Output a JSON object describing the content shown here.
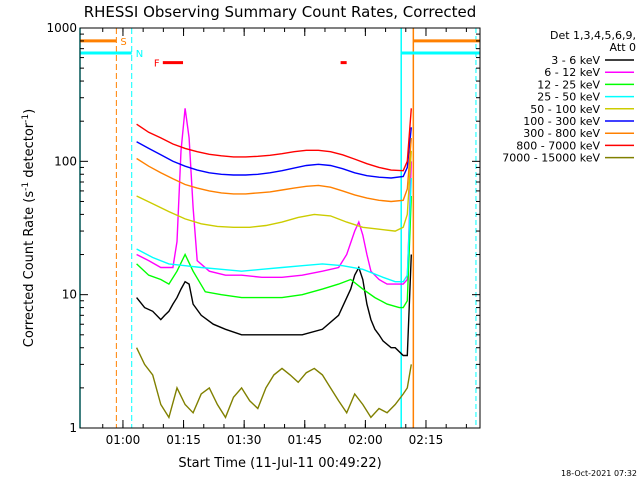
{
  "chart_data": {
    "type": "line",
    "title": "RHESSI Observing Summary Count Rates, Corrected",
    "xlabel": "Start Time (11-Jul-11 00:49:22)",
    "ylabel_main": "Corrected Count Rate (s",
    "ylabel_sup1": "-1",
    "ylabel_mid": " detector",
    "ylabel_sup2": "-1",
    "ylabel_end": ")",
    "x_unit": "minutes since 00:49:22",
    "xlim": [
      0,
      99
    ],
    "ylim": [
      1,
      1000
    ],
    "yscale": "log",
    "x_ticks": [
      {
        "label": "01:00",
        "t": 10.63
      },
      {
        "label": "01:15",
        "t": 25.63
      },
      {
        "label": "01:30",
        "t": 40.63
      },
      {
        "label": "01:45",
        "t": 55.63
      },
      {
        "label": "02:00",
        "t": 70.63
      },
      {
        "label": "02:15",
        "t": 85.63
      }
    ],
    "y_ticks": [
      {
        "label": "1",
        "v": 1
      },
      {
        "label": "10",
        "v": 10
      },
      {
        "label": "100",
        "v": 100
      },
      {
        "label": "1000",
        "v": 1000
      }
    ],
    "legend_header": [
      "Det 1,3,4,5,6,9,",
      "Att 0"
    ],
    "legend_position": "right",
    "series": [
      {
        "name": "3 - 6 keV",
        "color": "#000000",
        "x": [
          14,
          16,
          18,
          20,
          21,
          22,
          23,
          24,
          25,
          26,
          27,
          28,
          30,
          33,
          36,
          40,
          45,
          50,
          55,
          60,
          64,
          67,
          68,
          69,
          70,
          71,
          72,
          73,
          74,
          75,
          77,
          78,
          80,
          81,
          82
        ],
        "y": [
          9.5,
          8.0,
          7.5,
          6.5,
          7.0,
          7.5,
          8.5,
          9.5,
          11.0,
          12.5,
          12.0,
          8.5,
          7.0,
          6.0,
          5.5,
          5.0,
          5.0,
          5.0,
          5.0,
          5.5,
          7.0,
          11.0,
          14.0,
          16.0,
          13.0,
          8.5,
          6.5,
          5.5,
          5.0,
          4.5,
          4.0,
          4.0,
          3.5,
          3.5,
          20
        ]
      },
      {
        "name": "6 - 12 keV",
        "color": "#ff00ff",
        "x": [
          14,
          17,
          20,
          23,
          24,
          25,
          26,
          27,
          28,
          29,
          32,
          36,
          40,
          45,
          50,
          55,
          60,
          64,
          66,
          68,
          69,
          70,
          71,
          72,
          74,
          76,
          78,
          80,
          81,
          82
        ],
        "y": [
          20,
          18,
          16,
          16,
          25,
          120,
          250,
          150,
          45,
          18,
          15,
          14,
          14,
          13.5,
          13.5,
          14,
          15,
          16,
          20,
          30,
          35,
          28,
          20,
          15,
          13,
          12,
          12,
          12,
          13,
          100
        ]
      },
      {
        "name": "12 - 25 keV",
        "color": "#00ff00",
        "x": [
          14,
          17,
          20,
          22,
          24,
          26,
          28,
          31,
          35,
          40,
          45,
          50,
          55,
          60,
          64,
          67,
          70,
          73,
          76,
          79,
          80,
          81,
          82
        ],
        "y": [
          17,
          14,
          13,
          12,
          15,
          20,
          15,
          10.5,
          10,
          9.5,
          9.5,
          9.5,
          10,
          11,
          12,
          13,
          11,
          9.5,
          8.5,
          8,
          8,
          9,
          55
        ]
      },
      {
        "name": "25 - 50 keV",
        "color": "#00ffff",
        "x": [
          14,
          18,
          22,
          26,
          30,
          35,
          40,
          45,
          50,
          55,
          60,
          65,
          70,
          75,
          78,
          80,
          81,
          82
        ],
        "y": [
          22,
          19,
          17,
          16.5,
          16,
          15.5,
          15,
          15.5,
          16,
          16.5,
          17,
          16.5,
          15.5,
          13.5,
          12.5,
          12.5,
          14,
          75
        ]
      },
      {
        "name": "50 - 100 keV",
        "color": "#cccc00",
        "x": [
          14,
          18,
          22,
          26,
          30,
          34,
          38,
          42,
          46,
          50,
          54,
          58,
          62,
          66,
          70,
          74,
          78,
          80,
          81,
          82
        ],
        "y": [
          55,
          48,
          42,
          37,
          34,
          32.5,
          32,
          32,
          33,
          35,
          38,
          40,
          39,
          35,
          32,
          31,
          30,
          32,
          40,
          120
        ]
      },
      {
        "name": "100 - 300 keV",
        "color": "#0000ff",
        "x": [
          14,
          17,
          20,
          23,
          26,
          29,
          32,
          35,
          38,
          41,
          44,
          47,
          50,
          53,
          56,
          59,
          62,
          65,
          68,
          71,
          74,
          77,
          80,
          81,
          82
        ],
        "y": [
          140,
          125,
          112,
          100,
          92,
          86,
          82,
          80,
          79,
          79,
          80,
          82,
          85,
          89,
          93,
          95,
          93,
          88,
          82,
          78,
          76,
          75,
          77,
          90,
          180
        ]
      },
      {
        "name": "300 - 800 keV",
        "color": "#ff8000",
        "x": [
          14,
          17,
          20,
          23,
          26,
          29,
          32,
          35,
          38,
          41,
          44,
          47,
          50,
          53,
          56,
          59,
          62,
          65,
          68,
          71,
          74,
          77,
          80,
          81,
          82
        ],
        "y": [
          105,
          92,
          82,
          74,
          67,
          63,
          60,
          58,
          57,
          57,
          58,
          59,
          61,
          63,
          65,
          66,
          64,
          60,
          56,
          53,
          51,
          50,
          51,
          62,
          150
        ]
      },
      {
        "name": "800 - 7000 keV",
        "color": "#ff0000",
        "x": [
          14,
          17,
          20,
          23,
          26,
          29,
          32,
          35,
          38,
          41,
          44,
          47,
          50,
          53,
          56,
          59,
          62,
          65,
          68,
          71,
          74,
          77,
          80,
          81,
          82
        ],
        "y": [
          190,
          165,
          150,
          135,
          125,
          118,
          113,
          110,
          108,
          108,
          109,
          111,
          114,
          118,
          121,
          121,
          118,
          112,
          104,
          96,
          90,
          86,
          85,
          100,
          250
        ]
      },
      {
        "name": "7000 - 15000 keV",
        "color": "#808000",
        "x": [
          14,
          16,
          18,
          20,
          22,
          24,
          26,
          28,
          30,
          32,
          34,
          36,
          38,
          40,
          42,
          44,
          46,
          48,
          50,
          52,
          54,
          56,
          58,
          60,
          62,
          64,
          66,
          68,
          70,
          72,
          74,
          76,
          78,
          80,
          81,
          82
        ],
        "y": [
          4,
          3,
          2.5,
          1.5,
          1.2,
          2,
          1.5,
          1.3,
          1.8,
          2,
          1.5,
          1.2,
          1.7,
          2,
          1.6,
          1.4,
          2,
          2.5,
          2.8,
          2.5,
          2.2,
          2.6,
          2.8,
          2.5,
          2,
          1.6,
          1.3,
          1.8,
          1.5,
          1.2,
          1.4,
          1.3,
          1.5,
          1.8,
          2,
          3
        ]
      }
    ],
    "annotations": {
      "S": {
        "label": "S",
        "color": "#ff8000",
        "x_start": 0,
        "x_end": 9,
        "y": 800,
        "vline_t": 9
      },
      "N": {
        "label": "N",
        "color": "#00ffff",
        "x_start": 0,
        "x_end": 12.8,
        "y": 650,
        "vline_t": 12.8
      },
      "F": {
        "label": "F",
        "color": "#ff0000",
        "segments": [
          [
            20.5,
            25.5
          ],
          [
            64.5,
            66
          ]
        ],
        "y": 550
      },
      "night_right": {
        "color": "#00ffff",
        "x_start": 79.5,
        "x_end": 99,
        "y": 650
      },
      "saa_right": {
        "color": "#ff8000",
        "x_start": 82.5,
        "x_end": 99,
        "y": 800
      },
      "solid_vlines": [
        {
          "t": 0,
          "color": "#00ffff"
        },
        {
          "t": 79.5,
          "color": "#00ffff"
        },
        {
          "t": 82.5,
          "color": "#ff8000"
        }
      ],
      "dashed_vlines": [
        {
          "t": 98,
          "color": "#00ffff"
        }
      ]
    },
    "footer_timestamp": "18-Oct-2021 07:32"
  }
}
